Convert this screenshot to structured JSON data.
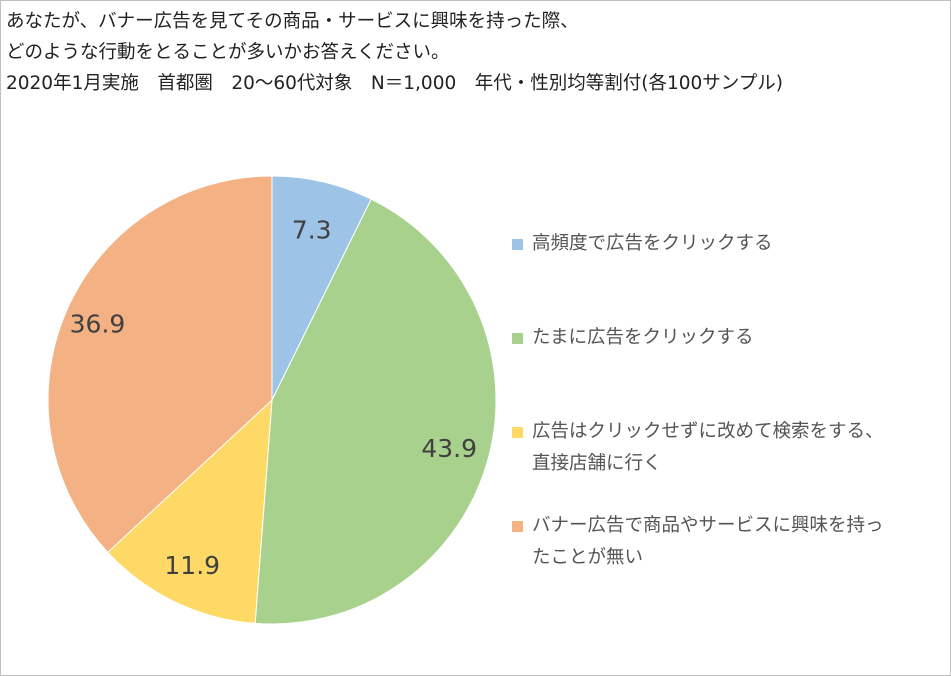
{
  "header": {
    "line1": "あなたが、バナー広告を見てその商品・サービスに興味を持った際、",
    "line2": "どのような行動をとることが多いかお答えください。",
    "line3": "2020年1月実施　首都圏　20〜60代対象　N＝1,000　年代・性別均等割付(各100サンプル)"
  },
  "chart_data": {
    "type": "pie",
    "title": "",
    "slices": [
      {
        "label": "高頻度で広告をクリックする",
        "value": 7.3,
        "color": "#9DC3E6",
        "value_label": "7.3"
      },
      {
        "label": "たまに広告をクリックする",
        "value": 43.9,
        "color": "#A9D18E",
        "value_label": "43.9"
      },
      {
        "label": "広告はクリックせずに改めて検索をする、直接店舗に行く",
        "value": 11.9,
        "color": "#FFD966",
        "value_label": "11.9"
      },
      {
        "label": "バナー広告で商品やサービスに興味を持ったことが無い",
        "value": 36.9,
        "color": "#F4B183",
        "value_label": "36.9"
      }
    ],
    "start_angle": "12 o'clock",
    "direction": "clockwise",
    "legend_position": "right"
  },
  "legend": {
    "items": [
      {
        "lines": [
          "高頻度で広告をクリックする"
        ]
      },
      {
        "lines": [
          "たまに広告をクリックする"
        ]
      },
      {
        "lines": [
          "広告はクリックせずに改めて検索をする、",
          "直接店舗に行く"
        ]
      },
      {
        "lines": [
          "バナー広告で商品やサービスに興味を持っ",
          "たことが無い"
        ]
      }
    ]
  }
}
